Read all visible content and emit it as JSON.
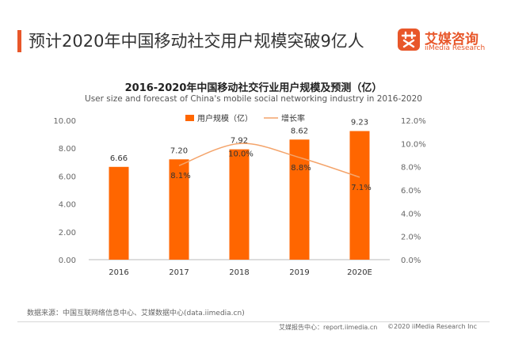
{
  "header": {
    "headline": "预计2020年中国移动社交用户规模突破9亿人",
    "brand_name": "艾媒咨询",
    "brand_sub": "iiMedia Research"
  },
  "chart_data": {
    "type": "bar",
    "title": "2016-2020年中国移动社交行业用户规模及预测（亿）",
    "subtitle": "User size and forecast of China's mobile social  networking industry in 2016-2020",
    "categories": [
      "2016",
      "2017",
      "2018",
      "2019",
      "2020E"
    ],
    "series": [
      {
        "name": "用户规模（亿）",
        "type": "bar",
        "axis": "left",
        "values": [
          6.66,
          7.2,
          7.92,
          8.62,
          9.23
        ],
        "labels": [
          "6.66",
          "7.20",
          "7.92",
          "8.62",
          "9.23"
        ]
      },
      {
        "name": "增长率",
        "type": "line",
        "axis": "right",
        "values": [
          null,
          8.1,
          10.0,
          8.8,
          7.1
        ],
        "labels": [
          "",
          "8.1%",
          "10.0%",
          "8.8%",
          "7.1%"
        ]
      }
    ],
    "y_left": {
      "min": 0,
      "max": 10,
      "ticks": [
        "0.00",
        "2.00",
        "4.00",
        "6.00",
        "8.00",
        "10.00"
      ]
    },
    "y_right": {
      "min": 0,
      "max": 12,
      "ticks": [
        "0.0%",
        "2.0%",
        "4.0%",
        "6.0%",
        "8.0%",
        "10.0%",
        "12.0%"
      ]
    },
    "legend_position": "top-center",
    "grid": false,
    "colors": {
      "bar": "#ff6600",
      "line": "#f4a46b",
      "accent": "#e8572a"
    }
  },
  "footer": {
    "source": "数据来源：中国互联网络信息中心、艾媒数据中心(data.iimedia.cn)",
    "report_link": "艾媒报告中心：report.iimedia.cn",
    "copyright": "©2020  iiMedia Research  Inc"
  }
}
